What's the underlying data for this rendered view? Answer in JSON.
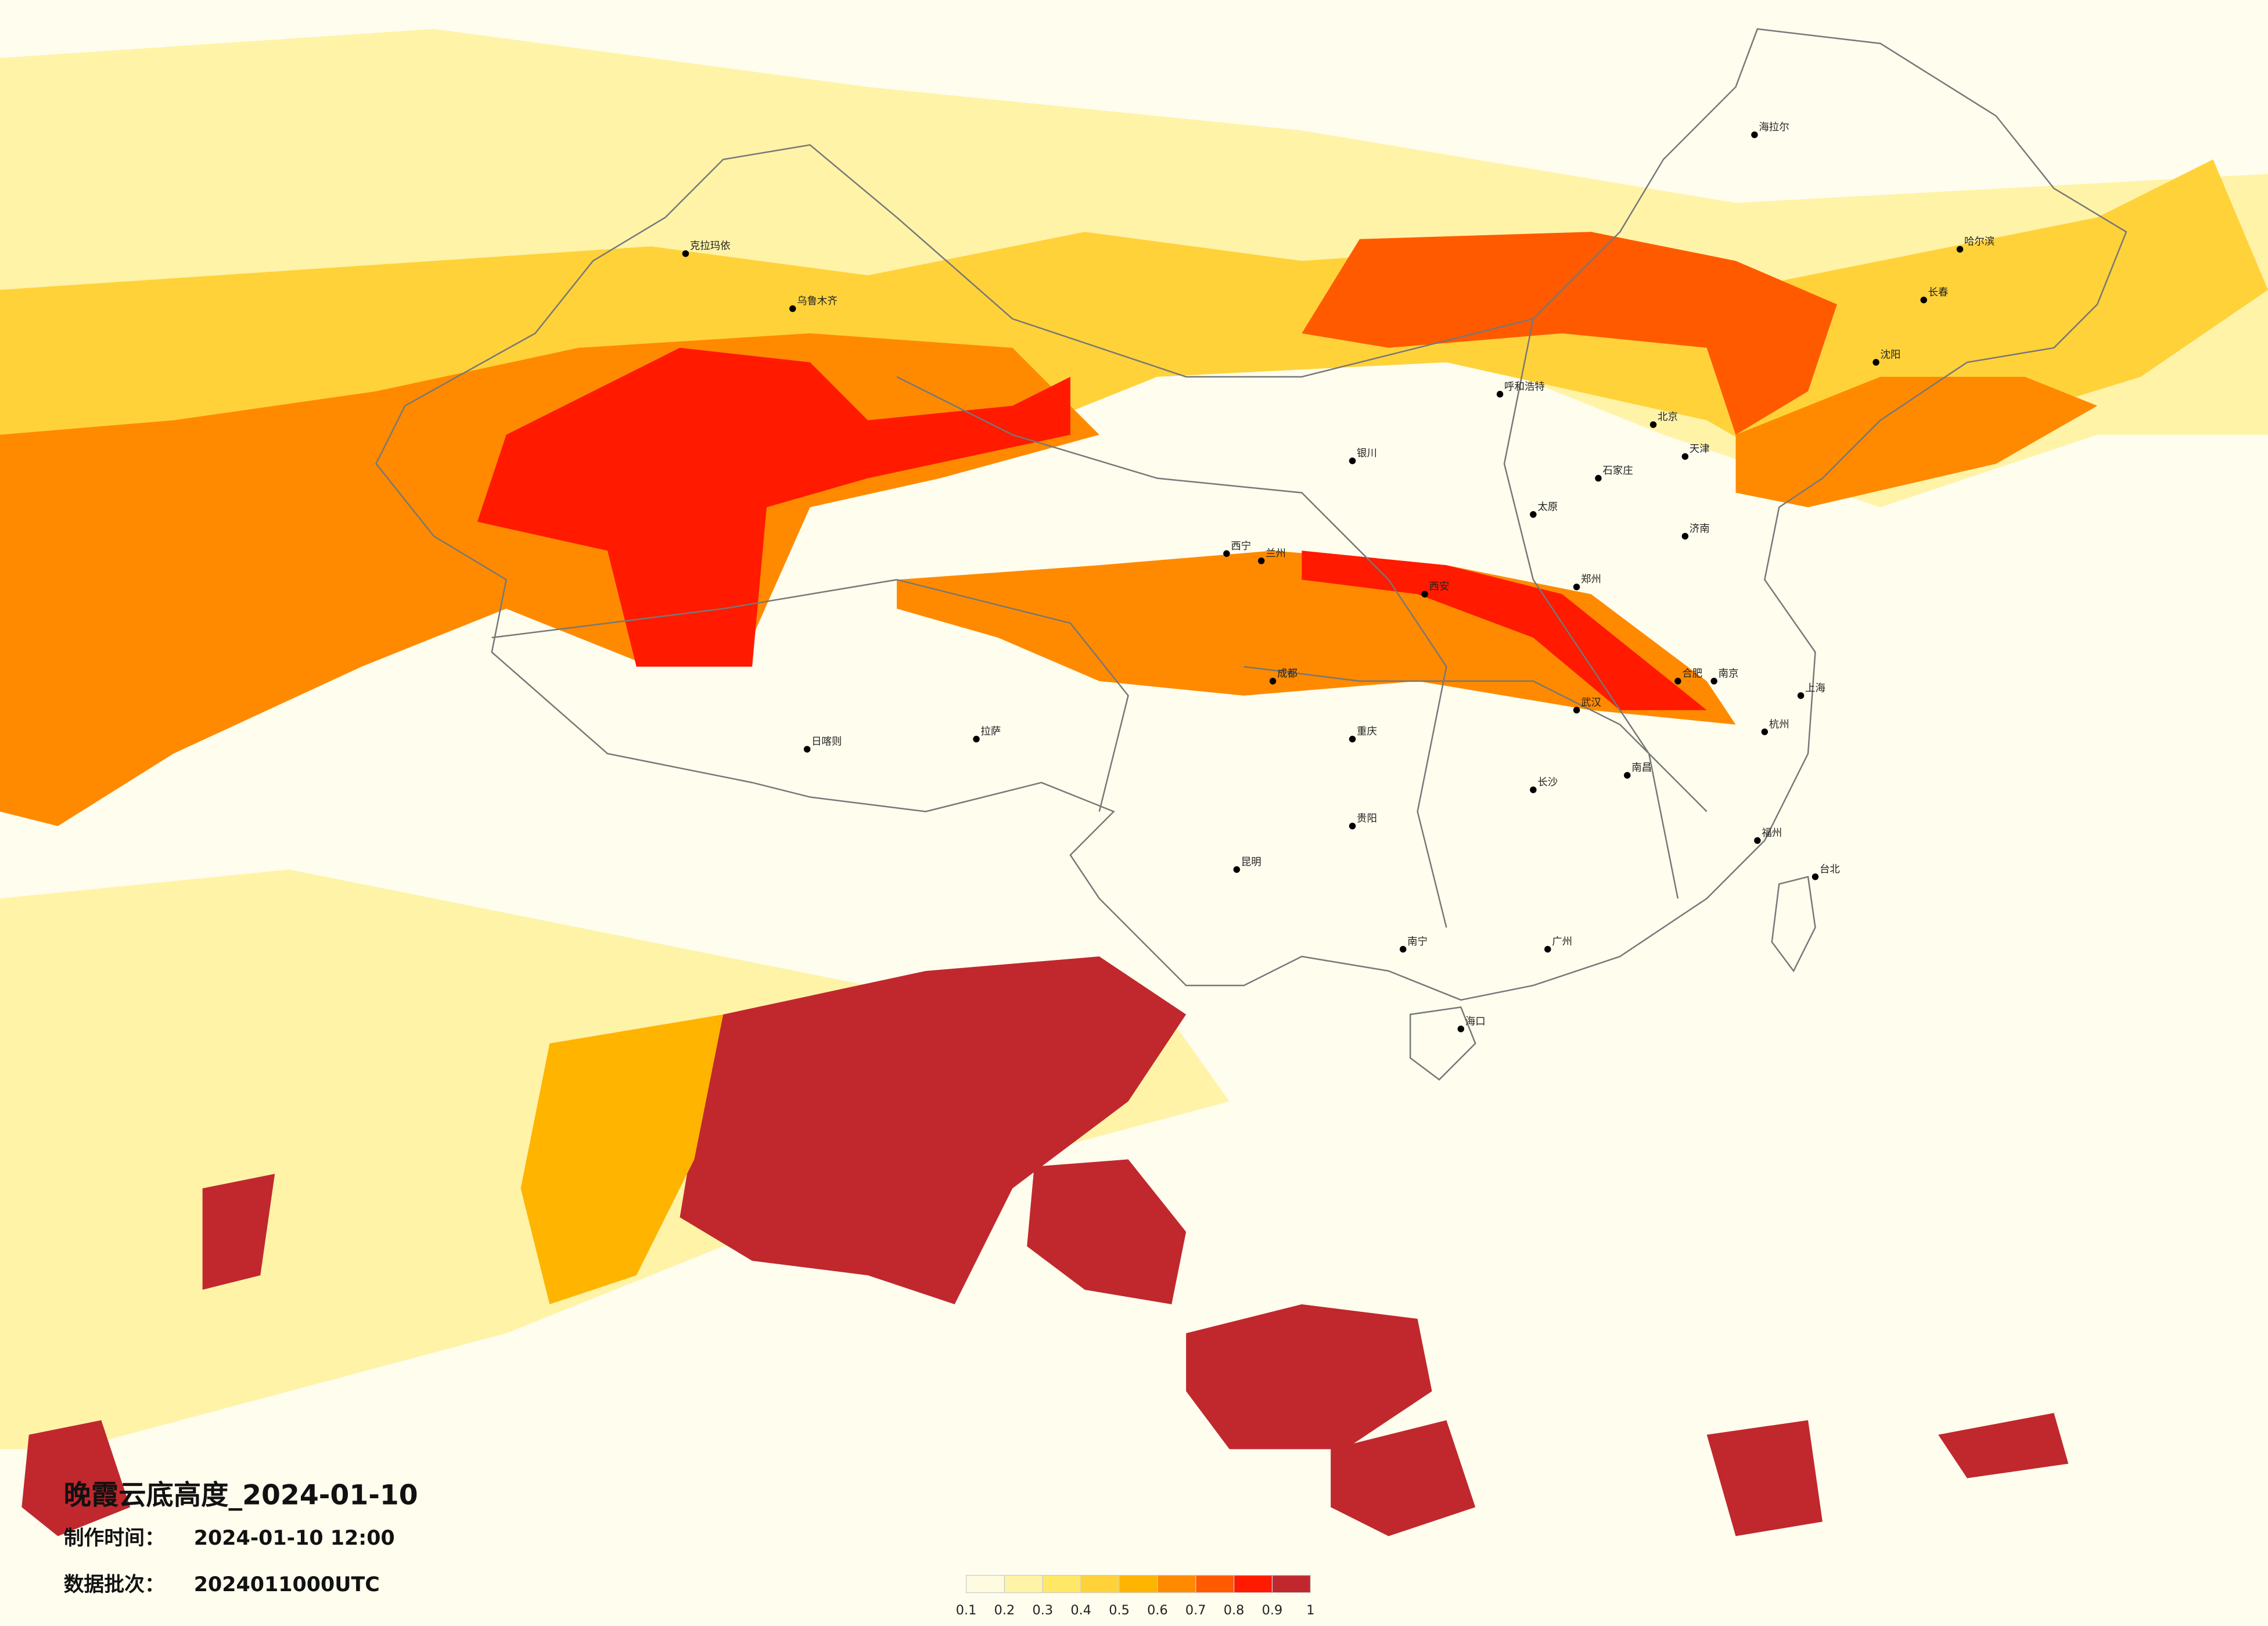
{
  "title": "晚霞云底高度_2024-01-10",
  "made_label": "制作时间：",
  "made_time": "2024-01-10 12:00",
  "batch_label": "数据批次：",
  "batch": "2024011000UTC",
  "legend": {
    "colors": [
      "#fffbe0",
      "#fff3a8",
      "#ffe866",
      "#ffd23a",
      "#ffb400",
      "#ff8a00",
      "#ff5a00",
      "#ff1a00",
      "#c0282e"
    ],
    "ticks": [
      0.1,
      0.2,
      0.3,
      0.4,
      0.5,
      0.6,
      0.7,
      0.8,
      0.9,
      1
    ]
  },
  "cities": [
    "海拉尔",
    "哈尔滨",
    "长春",
    "沈阳",
    "北京",
    "天津",
    "石家庄",
    "太原",
    "呼和浩特",
    "银川",
    "兰州",
    "西宁",
    "西安",
    "郑州",
    "济南",
    "南京",
    "上海",
    "杭州",
    "合肥",
    "武汉",
    "长沙",
    "南昌",
    "福州",
    "广州",
    "南宁",
    "海口",
    "贵阳",
    "昆明",
    "成都",
    "重庆",
    "拉萨",
    "日喀则",
    "乌鲁木齐",
    "克拉玛依",
    "台北"
  ]
}
